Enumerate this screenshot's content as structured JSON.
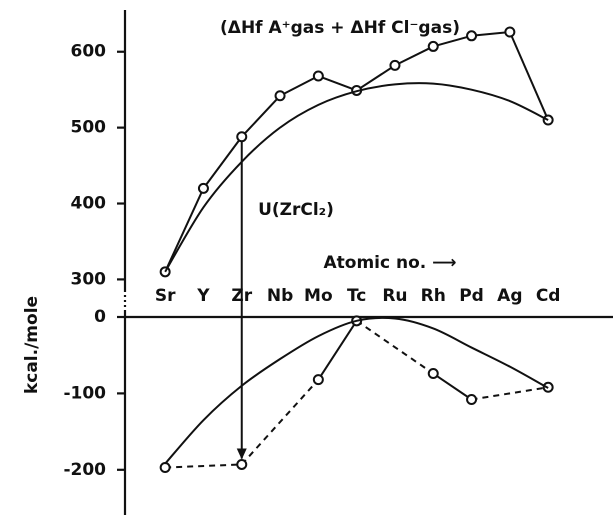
{
  "chart_data": [
    {
      "type": "line",
      "title": "(ΔHf A⁺gas + ΔHf Cl⁻gas)",
      "ylabel": "kcal./mole",
      "xlabel": "Atomic no. ⟶",
      "annotation": "U(ZrCl₂)",
      "categories": [
        "Sr",
        "Y",
        "Zr",
        "Nb",
        "Mo",
        "Tc",
        "Ru",
        "Rh",
        "Pd",
        "Ag",
        "Cd"
      ],
      "ylim": [
        290,
        655
      ],
      "yticks": [
        300,
        400,
        500,
        600
      ],
      "series": [
        {
          "name": "(ΔHf A⁺gas + ΔHf Cl⁻gas)",
          "color": "#111",
          "markers": true,
          "values": [
            310,
            420,
            488,
            542,
            568,
            549,
            582,
            607,
            621,
            626,
            510
          ]
        },
        {
          "color": "#111",
          "markers": false,
          "smooth": true,
          "values": [
            310,
            395,
            455,
            500,
            530,
            548,
            557,
            558,
            550,
            535,
            510
          ]
        }
      ]
    },
    {
      "type": "line",
      "ylim": [
        -250,
        0
      ],
      "yticks": [
        0,
        -100,
        -200
      ],
      "series": [
        {
          "color": "#111",
          "markers": true,
          "dashed_segments": [
            true,
            true,
            false,
            true,
            false,
            true
          ],
          "values": [
            -197,
            null,
            -193,
            null,
            -82,
            -5,
            null,
            -74,
            -108,
            null,
            -92
          ]
        },
        {
          "color": "#111",
          "markers": false,
          "smooth": true,
          "values": [
            -192,
            -135,
            -90,
            -55,
            -25,
            -5,
            -2,
            -15,
            -40,
            -65,
            -93
          ]
        }
      ]
    }
  ]
}
